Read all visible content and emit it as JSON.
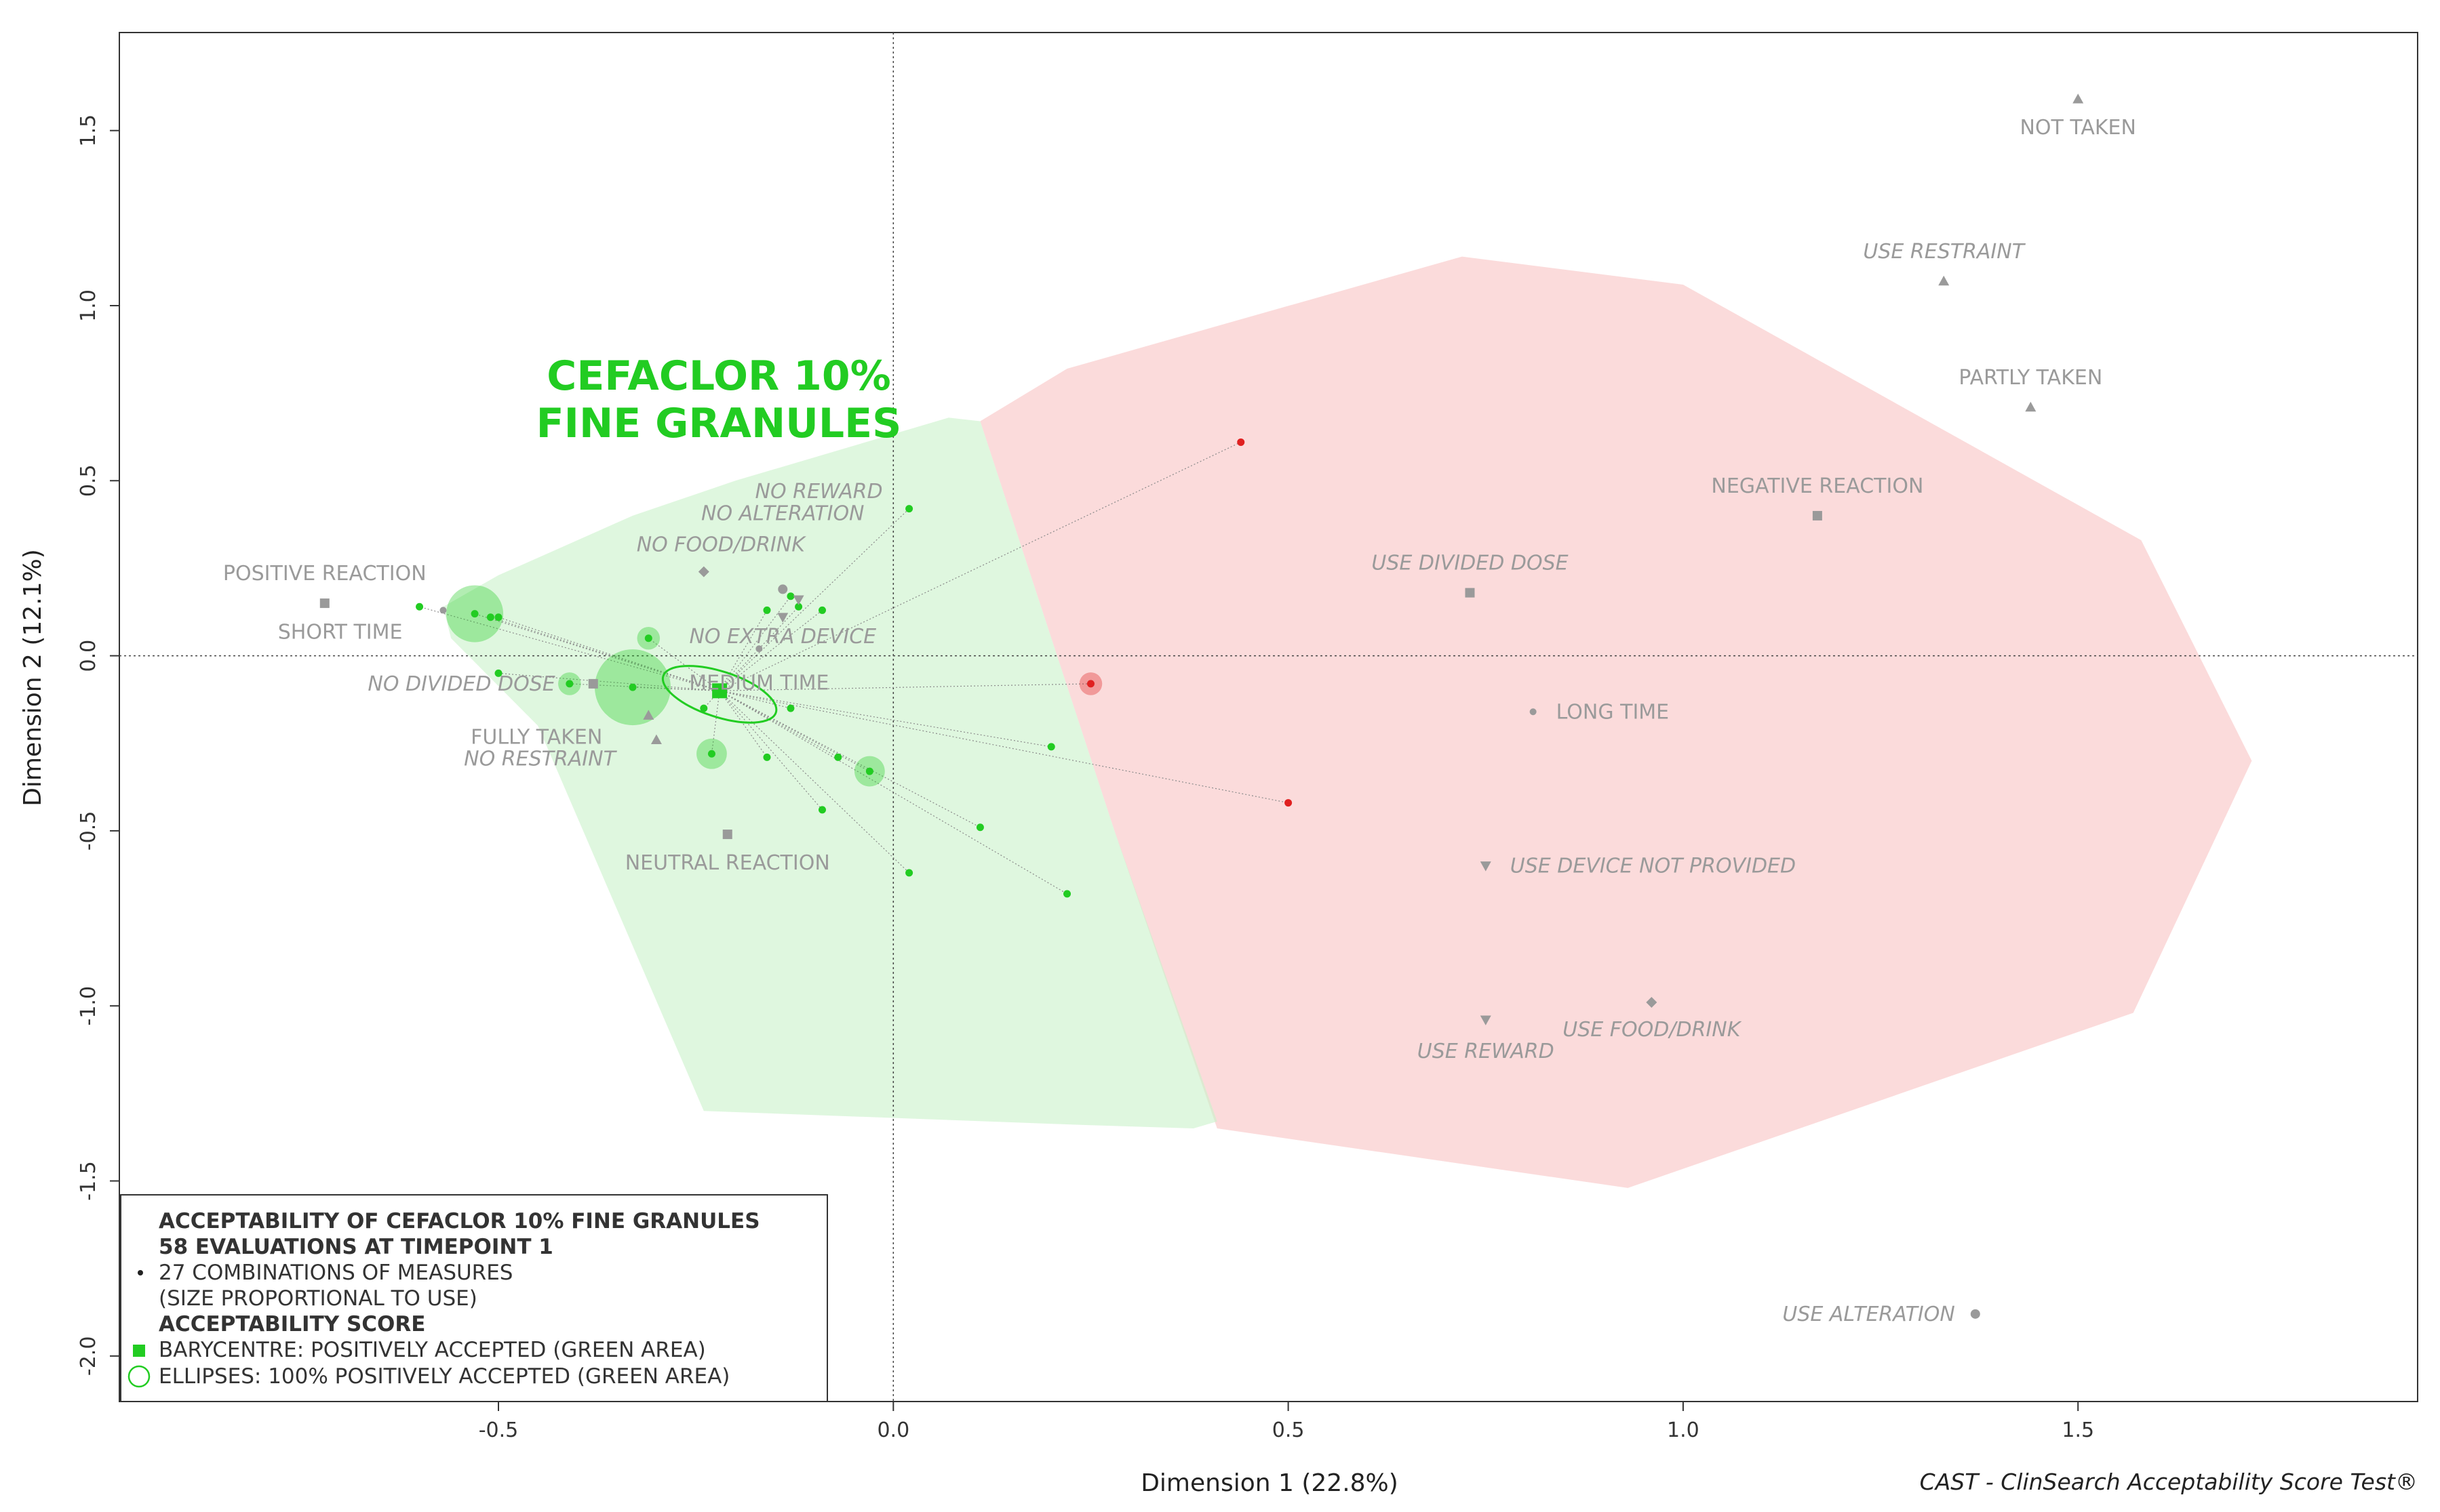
{
  "chart_data": {
    "type": "scatter",
    "xlabel": "Dimension 1 (22.8%)",
    "ylabel": "Dimension 2 (12.1%)",
    "xlim": [
      -0.98,
      1.93
    ],
    "ylim": [
      -2.13,
      1.78
    ],
    "xticks": [
      {
        "v": -0.5,
        "label": "-0.5"
      },
      {
        "v": 0.0,
        "label": "0.0"
      },
      {
        "v": 0.5,
        "label": "0.5"
      },
      {
        "v": 1.0,
        "label": "1.0"
      },
      {
        "v": 1.5,
        "label": "1.5"
      }
    ],
    "yticks": [
      {
        "v": 1.5,
        "label": "1.5"
      },
      {
        "v": 1.0,
        "label": "1.0"
      },
      {
        "v": 0.5,
        "label": "0.5"
      },
      {
        "v": 0.0,
        "label": "0.0"
      },
      {
        "v": -0.5,
        "label": "-0.5"
      },
      {
        "v": -1.0,
        "label": "-1.0"
      },
      {
        "v": -1.5,
        "label": "-1.5"
      },
      {
        "v": -2.0,
        "label": "-2.0"
      }
    ],
    "title": "CEFACLOR 10%",
    "title_line2": "FINE GRANULES",
    "green_area": [
      [
        -0.57,
        0.14
      ],
      [
        -0.5,
        0.23
      ],
      [
        -0.33,
        0.4
      ],
      [
        -0.2,
        0.5
      ],
      [
        0.07,
        0.68
      ],
      [
        0.11,
        0.67
      ],
      [
        0.28,
        -0.5
      ],
      [
        0.41,
        -1.33
      ],
      [
        0.38,
        -1.35
      ],
      [
        0.24,
        -1.34
      ],
      [
        -0.24,
        -1.3
      ],
      [
        -0.45,
        -0.2
      ],
      [
        -0.56,
        0.05
      ]
    ],
    "red_area": [
      [
        0.11,
        0.67
      ],
      [
        0.22,
        0.82
      ],
      [
        0.72,
        1.14
      ],
      [
        1.0,
        1.06
      ],
      [
        1.58,
        0.33
      ],
      [
        1.72,
        -0.3
      ],
      [
        1.57,
        -1.02
      ],
      [
        0.93,
        -1.52
      ],
      [
        0.41,
        -1.35
      ],
      [
        0.28,
        -0.5
      ]
    ],
    "categories": [
      {
        "label": "NOT TAKEN",
        "x": 1.5,
        "y": 1.59,
        "marker": "triangle-up",
        "italic": false
      },
      {
        "label": "USE RESTRAINT",
        "x": 1.33,
        "y": 1.07,
        "marker": "triangle-up",
        "italic": true
      },
      {
        "label": "PARTLY TAKEN",
        "x": 1.44,
        "y": 0.71,
        "marker": "triangle-up",
        "italic": false
      },
      {
        "label": "NEGATIVE REACTION",
        "x": 1.17,
        "y": 0.4,
        "marker": "square",
        "italic": false
      },
      {
        "label": "USE DIVIDED DOSE",
        "x": 0.73,
        "y": 0.18,
        "marker": "square",
        "italic": true
      },
      {
        "label": "LONG TIME",
        "x": 0.81,
        "y": -0.16,
        "marker": "plus",
        "italic": false
      },
      {
        "label": "USE DEVICE NOT PROVIDED",
        "x": 0.75,
        "y": -0.6,
        "marker": "triangle-down",
        "italic": true
      },
      {
        "label": "USE REWARD",
        "x": 0.75,
        "y": -1.04,
        "marker": "triangle-down",
        "italic": true
      },
      {
        "label": "USE FOOD/DRINK",
        "x": 0.96,
        "y": -0.99,
        "marker": "diamond",
        "italic": true
      },
      {
        "label": "USE ALTERATION",
        "x": 1.37,
        "y": -1.88,
        "marker": "circle",
        "italic": true
      },
      {
        "label": "POSITIVE REACTION",
        "x": -0.72,
        "y": 0.15,
        "marker": "square",
        "italic": false
      },
      {
        "label": "SHORT TIME",
        "x": -0.57,
        "y": 0.13,
        "marker": "plus",
        "italic": false
      },
      {
        "label": "NO REWARD",
        "x": -0.12,
        "y": 0.16,
        "marker": "triangle-down",
        "italic": true
      },
      {
        "label": "NO ALTERATION",
        "x": -0.14,
        "y": 0.19,
        "marker": "circle",
        "italic": true
      },
      {
        "label": "NO FOOD/DRINK",
        "x": -0.24,
        "y": 0.24,
        "marker": "diamond",
        "italic": true
      },
      {
        "label": "NO EXTRA DEVICE",
        "x": -0.14,
        "y": 0.11,
        "marker": "triangle-down",
        "italic": true
      },
      {
        "label": "MEDIUM TIME",
        "x": -0.17,
        "y": 0.02,
        "marker": "plus",
        "italic": false
      },
      {
        "label": "NO DIVIDED DOSE",
        "x": -0.38,
        "y": -0.08,
        "marker": "square",
        "italic": true
      },
      {
        "label": "FULLY TAKEN",
        "x": -0.31,
        "y": -0.17,
        "marker": "triangle-up",
        "italic": false
      },
      {
        "label": "NO RESTRAINT",
        "x": -0.3,
        "y": -0.24,
        "marker": "triangle-up",
        "italic": true
      },
      {
        "label": "NEUTRAL REACTION",
        "x": -0.21,
        "y": -0.51,
        "marker": "square",
        "italic": false
      }
    ],
    "barycentre": {
      "x": -0.22,
      "y": -0.1
    },
    "ellipse": {
      "cx": -0.22,
      "cy": -0.11,
      "rx": 0.075,
      "ry": 0.065,
      "rotation_deg": 18
    },
    "combinations": [
      {
        "x": -0.53,
        "y": 0.12,
        "size": 3,
        "accepted": true
      },
      {
        "x": -0.51,
        "y": 0.11,
        "size": 1,
        "accepted": true
      },
      {
        "x": -0.6,
        "y": 0.14,
        "size": 1,
        "accepted": true
      },
      {
        "x": -0.5,
        "y": 0.11,
        "size": 1,
        "accepted": true
      },
      {
        "x": -0.5,
        "y": -0.05,
        "size": 1,
        "accepted": true
      },
      {
        "x": -0.41,
        "y": -0.08,
        "size": 1.2,
        "accepted": true
      },
      {
        "x": -0.33,
        "y": -0.09,
        "size": 4,
        "accepted": true
      },
      {
        "x": -0.31,
        "y": 0.05,
        "size": 1.2,
        "accepted": true
      },
      {
        "x": -0.24,
        "y": -0.15,
        "size": 1,
        "accepted": true
      },
      {
        "x": -0.23,
        "y": -0.28,
        "size": 1.6,
        "accepted": true
      },
      {
        "x": -0.16,
        "y": 0.13,
        "size": 1,
        "accepted": true
      },
      {
        "x": -0.16,
        "y": -0.29,
        "size": 1,
        "accepted": true
      },
      {
        "x": -0.13,
        "y": -0.15,
        "size": 1,
        "accepted": true
      },
      {
        "x": -0.09,
        "y": 0.13,
        "size": 1,
        "accepted": true
      },
      {
        "x": -0.09,
        "y": -0.44,
        "size": 1,
        "accepted": true
      },
      {
        "x": -0.07,
        "y": -0.29,
        "size": 1,
        "accepted": true
      },
      {
        "x": -0.03,
        "y": -0.33,
        "size": 1.6,
        "accepted": true
      },
      {
        "x": 0.02,
        "y": 0.42,
        "size": 1,
        "accepted": true
      },
      {
        "x": 0.02,
        "y": -0.62,
        "size": 1,
        "accepted": true
      },
      {
        "x": 0.11,
        "y": -0.49,
        "size": 1,
        "accepted": true
      },
      {
        "x": 0.2,
        "y": -0.26,
        "size": 1,
        "accepted": true
      },
      {
        "x": 0.22,
        "y": -0.68,
        "size": 1,
        "accepted": true
      },
      {
        "x": 0.25,
        "y": -0.08,
        "size": 1.2,
        "accepted": false
      },
      {
        "x": 0.44,
        "y": 0.61,
        "size": 1,
        "accepted": false
      },
      {
        "x": 0.5,
        "y": -0.42,
        "size": 1,
        "accepted": false
      },
      {
        "x": -0.13,
        "y": 0.17,
        "size": 1,
        "accepted": true
      },
      {
        "x": -0.12,
        "y": 0.14,
        "size": 1,
        "accepted": true
      }
    ],
    "legend": {
      "title1": "ACCEPTABILITY OF CEFACLOR 10% FINE GRANULES",
      "title2": "58 EVALUATIONS AT TIMEPOINT 1",
      "combos_line1": "27 COMBINATIONS OF MEASURES",
      "combos_line2": "(SIZE PROPORTIONAL TO USE)",
      "score_title": "ACCEPTABILITY SCORE",
      "barycentre": "BARYCENTRE: POSITIVELY ACCEPTED (GREEN AREA)",
      "ellipses": "ELLIPSES: 100% POSITIVELY ACCEPTED (GREEN AREA)",
      "position": "bottom-left"
    },
    "colors": {
      "accepted": "#22cc22",
      "not_accepted": "#e02020",
      "green_area": "#c9f2c9",
      "red_area": "#f9cfcf",
      "category": "#9a9a9a"
    }
  },
  "footer": "CAST - ClinSearch Acceptability Score Test®"
}
